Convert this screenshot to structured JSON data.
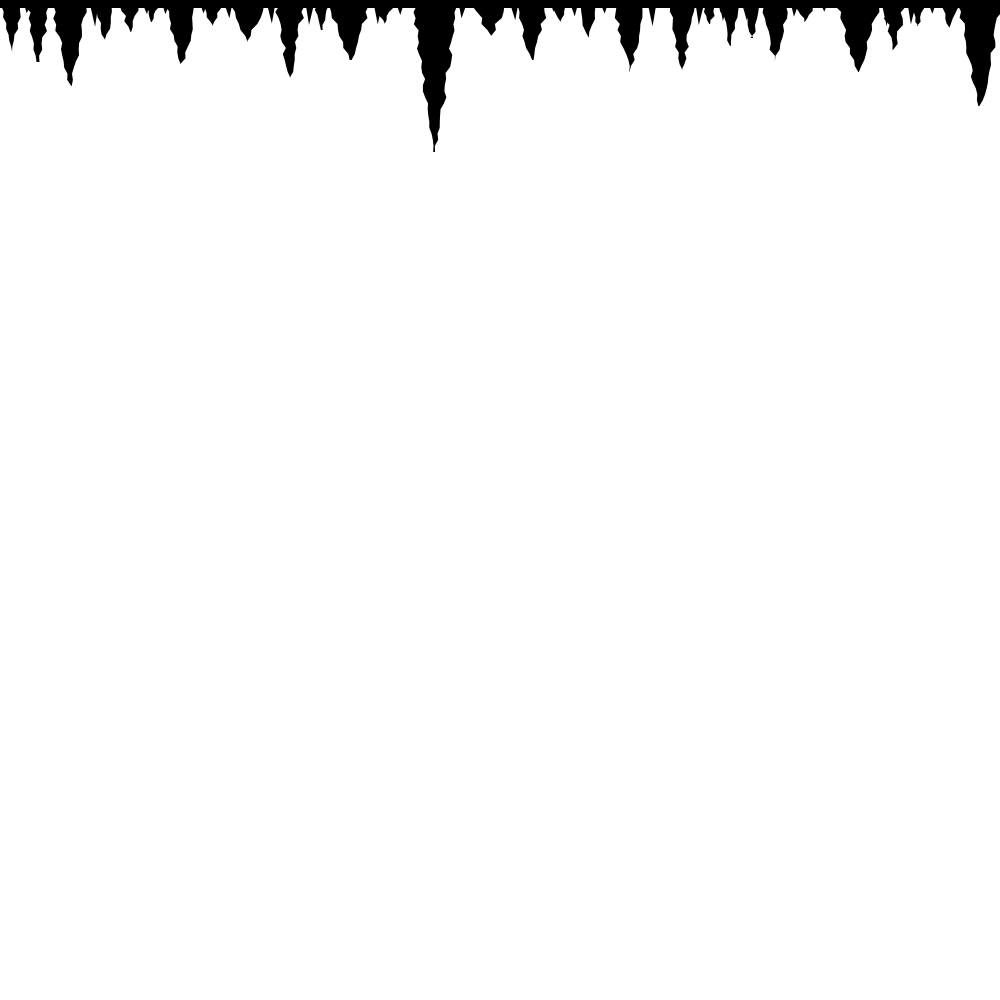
{
  "scene": {
    "background_color": "#ffffff",
    "foreground_color": "#000000",
    "description_kind": "abstract-black-drips",
    "drip_count": 30
  }
}
